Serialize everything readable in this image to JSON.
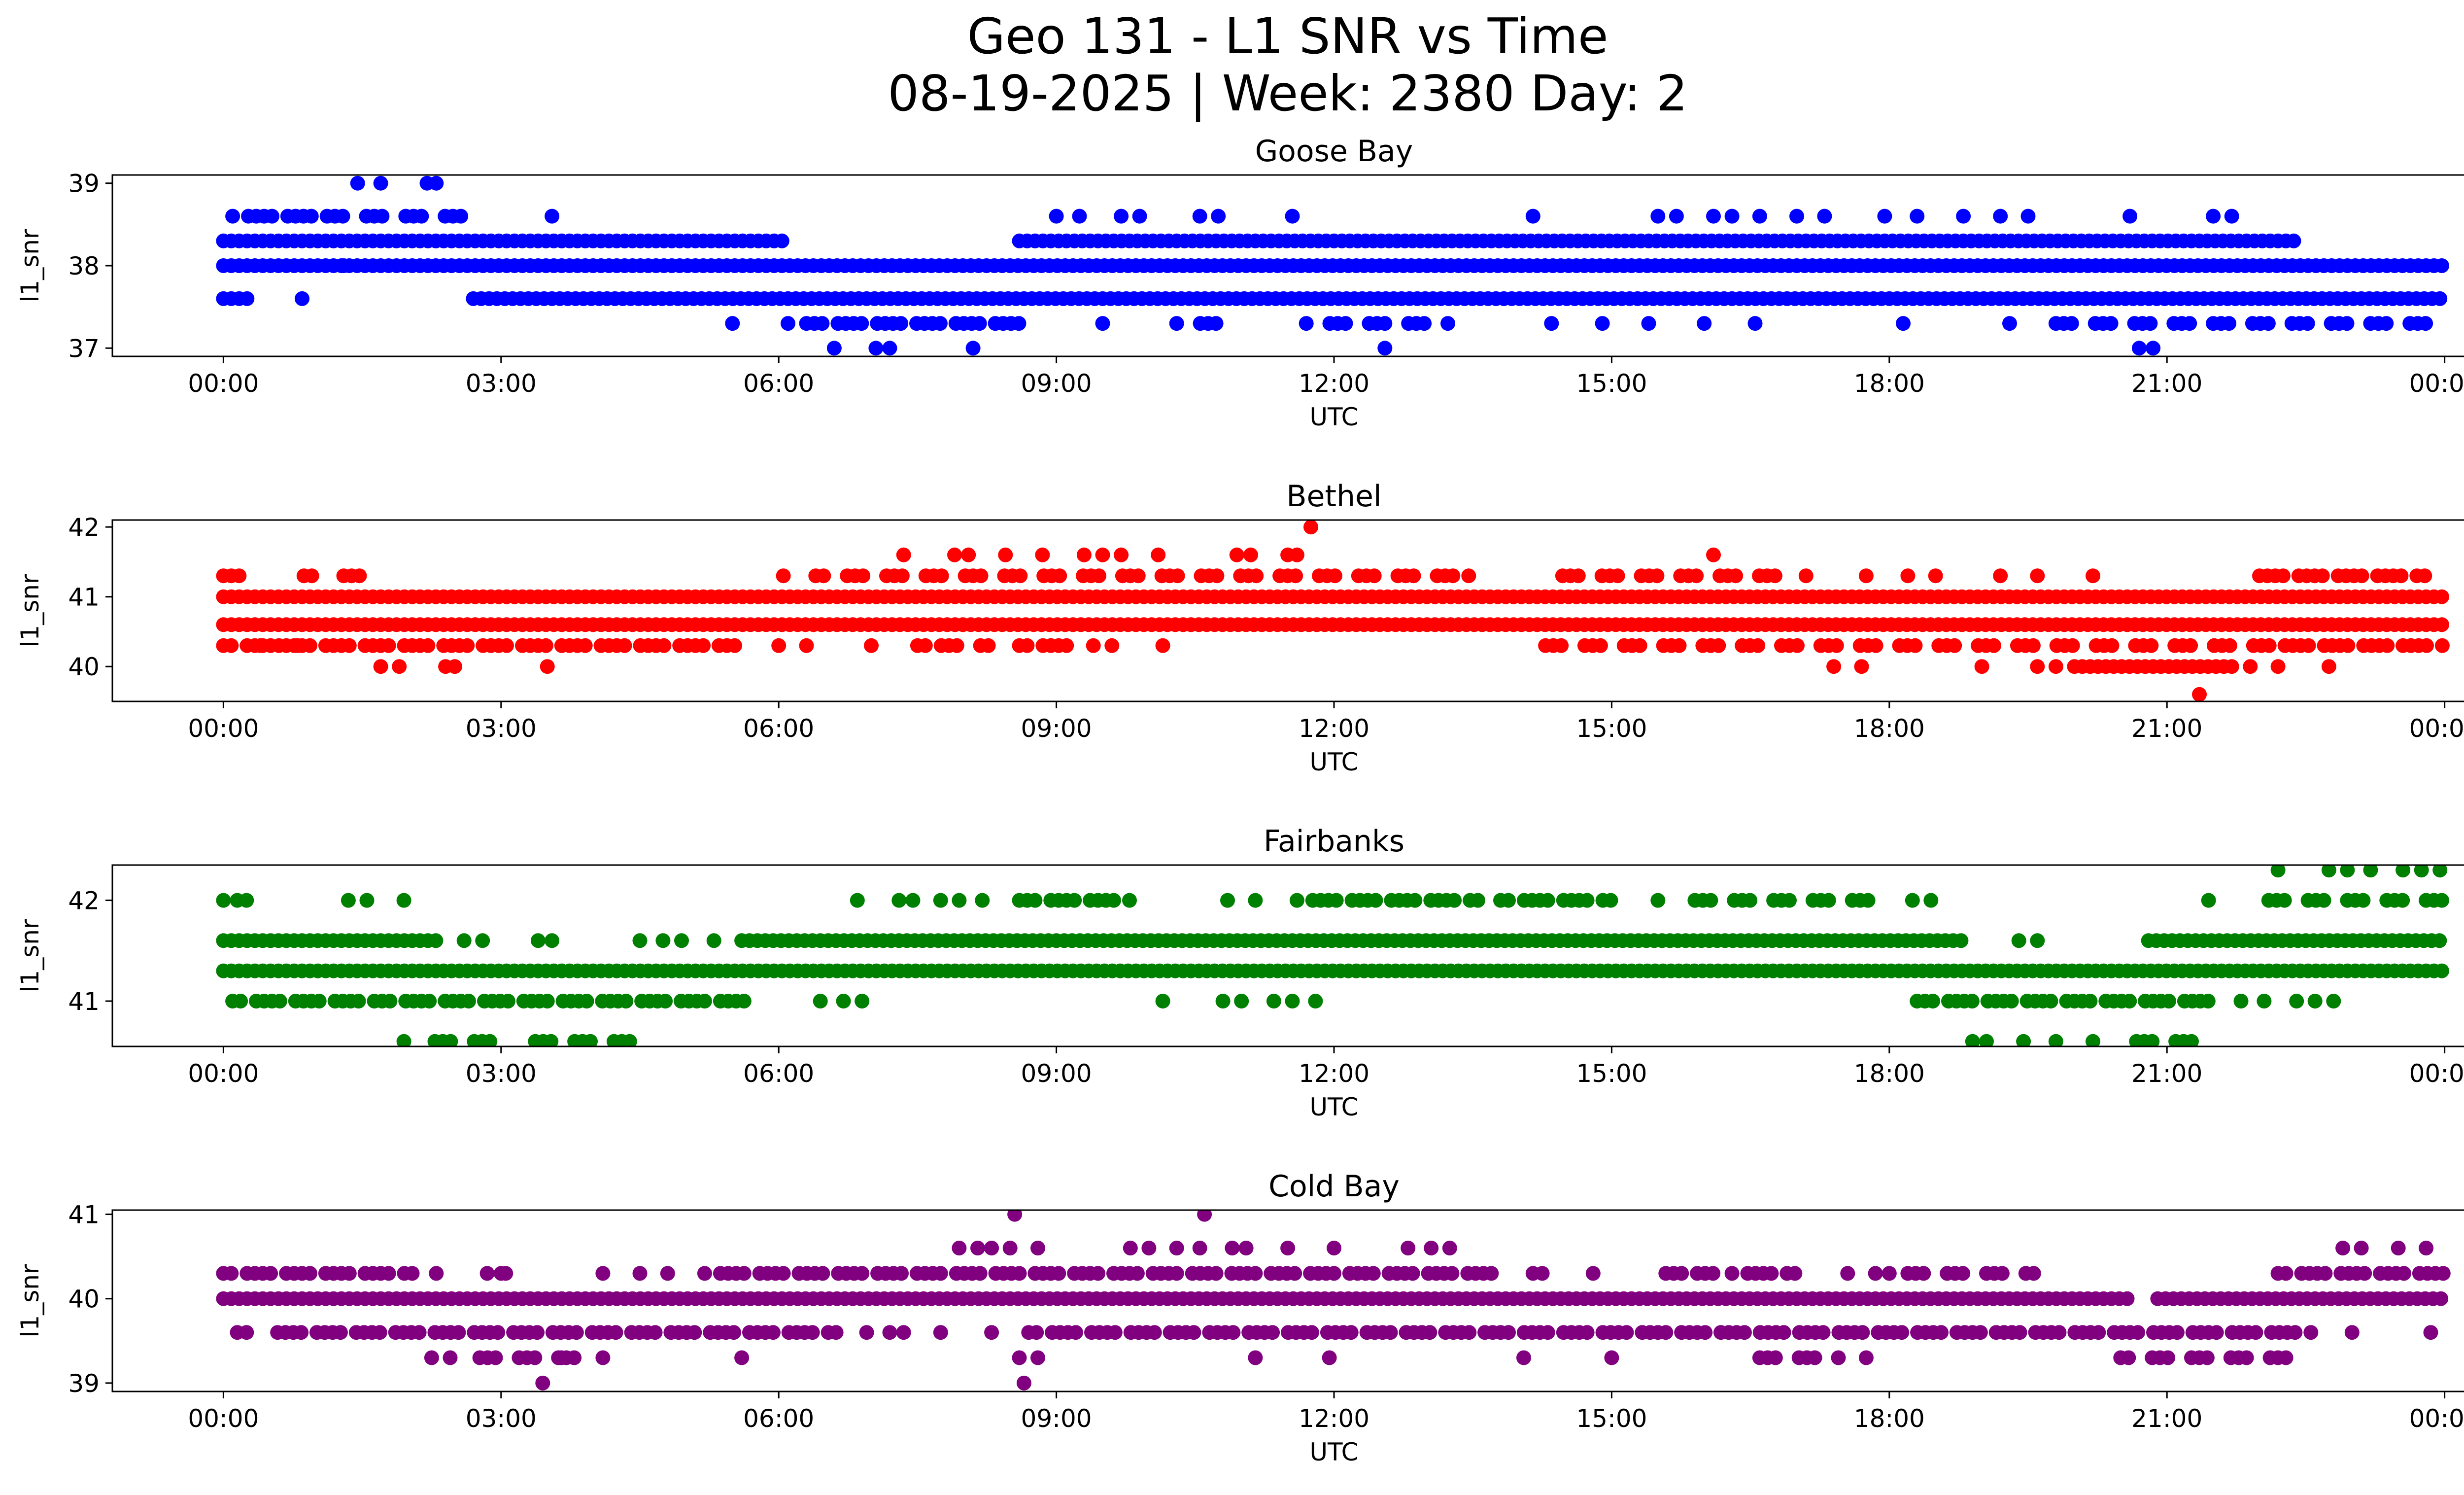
{
  "figure": {
    "title_line1": "Geo 131 - L1 SNR vs Time",
    "title_line2": "08-19-2025 | Week: 2380 Day: 2"
  },
  "chart_data": [
    {
      "type": "scatter",
      "title": "Goose Bay",
      "xlabel": "UTC",
      "ylabel": "l1_snr",
      "color": "#0000ff",
      "x_range": [
        "00:00",
        "24:00"
      ],
      "x_ticks": [
        "00:00",
        "03:00",
        "06:00",
        "09:00",
        "12:00",
        "15:00",
        "18:00",
        "21:00",
        "00:00"
      ],
      "y_ticks": [
        37,
        38,
        39
      ],
      "ylim": [
        36.9,
        39.1
      ],
      "grid": false,
      "bands": [
        {
          "y": 38.6,
          "ranges": [
            [
              0.1,
              2.8
            ]
          ],
          "density": 0.85
        },
        {
          "y": 38.3,
          "ranges": [
            [
              0.0,
              6.1
            ],
            [
              8.6,
              22.4
            ]
          ],
          "density": 0.95
        },
        {
          "y": 38.0,
          "ranges": [
            [
              0.0,
              24.0
            ]
          ],
          "density": 1.0
        },
        {
          "y": 37.6,
          "ranges": [
            [
              0.0,
              0.3
            ],
            [
              2.7,
              24.0
            ]
          ],
          "density": 0.95
        },
        {
          "y": 37.3,
          "ranges": [
            [
              6.3,
              8.6
            ],
            [
              10.3,
              10.9
            ],
            [
              11.7,
              13.3
            ],
            [
              19.8,
              24.0
            ]
          ],
          "density": 0.8
        }
      ],
      "points": [
        [
          1.45,
          39.0
        ],
        [
          1.7,
          39.0
        ],
        [
          2.2,
          39.0
        ],
        [
          2.3,
          39.0
        ],
        [
          0.85,
          37.6
        ],
        [
          1.3,
          38.0
        ],
        [
          3.55,
          38.6
        ],
        [
          6.6,
          37.0
        ],
        [
          7.05,
          37.0
        ],
        [
          7.2,
          37.0
        ],
        [
          8.1,
          37.0
        ],
        [
          12.55,
          37.0
        ],
        [
          20.7,
          37.0
        ],
        [
          20.85,
          37.0
        ],
        [
          9.0,
          38.6
        ],
        [
          9.25,
          38.6
        ],
        [
          9.7,
          38.6
        ],
        [
          9.9,
          38.6
        ],
        [
          10.55,
          38.6
        ],
        [
          10.75,
          38.6
        ],
        [
          11.55,
          38.6
        ],
        [
          14.15,
          38.6
        ],
        [
          15.5,
          38.6
        ],
        [
          15.7,
          38.6
        ],
        [
          16.1,
          38.6
        ],
        [
          16.3,
          38.6
        ],
        [
          16.6,
          38.6
        ],
        [
          17.0,
          38.6
        ],
        [
          17.3,
          38.6
        ],
        [
          17.95,
          38.6
        ],
        [
          18.3,
          38.6
        ],
        [
          18.8,
          38.6
        ],
        [
          19.2,
          38.6
        ],
        [
          19.5,
          38.6
        ],
        [
          20.6,
          38.6
        ],
        [
          21.5,
          38.6
        ],
        [
          21.7,
          38.6
        ],
        [
          5.5,
          37.3
        ],
        [
          6.1,
          37.3
        ],
        [
          9.5,
          37.3
        ],
        [
          14.35,
          37.3
        ],
        [
          14.9,
          37.3
        ],
        [
          15.4,
          37.3
        ],
        [
          16.0,
          37.3
        ],
        [
          16.55,
          37.3
        ],
        [
          18.15,
          37.3
        ],
        [
          19.3,
          37.3
        ]
      ]
    },
    {
      "type": "scatter",
      "title": "Bethel",
      "xlabel": "UTC",
      "ylabel": "l1_snr",
      "color": "#ff0000",
      "x_range": [
        "00:00",
        "24:00"
      ],
      "x_ticks": [
        "00:00",
        "03:00",
        "06:00",
        "09:00",
        "12:00",
        "15:00",
        "18:00",
        "21:00",
        "00:00"
      ],
      "y_ticks": [
        40,
        41,
        42
      ],
      "ylim": [
        39.5,
        42.1
      ],
      "grid": false,
      "bands": [
        {
          "y": 41.3,
          "ranges": [
            [
              0.0,
              0.2
            ],
            [
              0.7,
              1.0
            ],
            [
              1.3,
              1.6
            ],
            [
              6.4,
              13.5
            ],
            [
              14.3,
              16.9
            ],
            [
              22.0,
              23.8
            ]
          ],
          "density": 0.8
        },
        {
          "y": 41.0,
          "ranges": [
            [
              0.0,
              24.0
            ]
          ],
          "density": 1.0
        },
        {
          "y": 40.6,
          "ranges": [
            [
              0.0,
              24.0
            ]
          ],
          "density": 1.0
        },
        {
          "y": 40.3,
          "ranges": [
            [
              0.0,
              5.6
            ],
            [
              7.5,
              8.3
            ],
            [
              8.6,
              9.2
            ],
            [
              14.2,
              24.0
            ]
          ],
          "density": 0.85
        },
        {
          "y": 40.0,
          "ranges": [
            [
              20.0,
              21.7
            ]
          ],
          "density": 0.95
        }
      ],
      "points": [
        [
          1.7,
          40.0
        ],
        [
          1.9,
          40.0
        ],
        [
          2.4,
          40.0
        ],
        [
          2.5,
          40.0
        ],
        [
          3.5,
          40.0
        ],
        [
          17.4,
          40.0
        ],
        [
          17.7,
          40.0
        ],
        [
          19.0,
          40.0
        ],
        [
          19.6,
          40.0
        ],
        [
          19.8,
          40.0
        ],
        [
          21.9,
          40.0
        ],
        [
          22.2,
          40.0
        ],
        [
          22.75,
          40.0
        ],
        [
          0.4,
          40.3
        ],
        [
          0.6,
          40.3
        ],
        [
          0.8,
          40.3
        ],
        [
          6.0,
          40.3
        ],
        [
          6.3,
          40.3
        ],
        [
          7.0,
          40.3
        ],
        [
          9.4,
          40.3
        ],
        [
          9.6,
          40.3
        ],
        [
          10.15,
          40.3
        ],
        [
          6.05,
          41.3
        ],
        [
          17.1,
          41.3
        ],
        [
          17.75,
          41.3
        ],
        [
          18.2,
          41.3
        ],
        [
          18.5,
          41.3
        ],
        [
          19.2,
          41.3
        ],
        [
          19.6,
          41.3
        ],
        [
          20.2,
          41.3
        ],
        [
          7.35,
          41.6
        ],
        [
          7.9,
          41.6
        ],
        [
          8.05,
          41.6
        ],
        [
          8.45,
          41.6
        ],
        [
          8.85,
          41.6
        ],
        [
          9.3,
          41.6
        ],
        [
          9.5,
          41.6
        ],
        [
          9.7,
          41.6
        ],
        [
          10.1,
          41.6
        ],
        [
          10.95,
          41.6
        ],
        [
          11.1,
          41.6
        ],
        [
          11.5,
          41.6
        ],
        [
          11.6,
          41.6
        ],
        [
          16.1,
          41.6
        ],
        [
          11.75,
          42.0
        ],
        [
          21.35,
          39.6
        ]
      ]
    },
    {
      "type": "scatter",
      "title": "Fairbanks",
      "xlabel": "UTC",
      "ylabel": "l1_snr",
      "color": "#008000",
      "x_range": [
        "00:00",
        "24:00"
      ],
      "x_ticks": [
        "00:00",
        "03:00",
        "06:00",
        "09:00",
        "12:00",
        "15:00",
        "18:00",
        "21:00",
        "00:00"
      ],
      "y_ticks": [
        41,
        42
      ],
      "ylim": [
        40.55,
        42.35
      ],
      "grid": false,
      "bands": [
        {
          "y": 42.0,
          "ranges": [
            [
              8.6,
              9.8
            ],
            [
              11.6,
              13.6
            ],
            [
              13.8,
              15.0
            ],
            [
              15.9,
              18.0
            ],
            [
              22.1,
              24.0
            ]
          ],
          "density": 0.85
        },
        {
          "y": 41.6,
          "ranges": [
            [
              0.0,
              2.3
            ],
            [
              5.6,
              18.8
            ],
            [
              20.8,
              24.0
            ]
          ],
          "density": 0.95
        },
        {
          "y": 41.3,
          "ranges": [
            [
              0.0,
              24.0
            ]
          ],
          "density": 1.0
        },
        {
          "y": 41.0,
          "ranges": [
            [
              0.1,
              5.7
            ],
            [
              18.3,
              21.6
            ]
          ],
          "density": 0.9
        },
        {
          "y": 40.6,
          "ranges": [
            [
              2.2,
              3.1
            ],
            [
              3.2,
              4.5
            ],
            [
              20.5,
              21.5
            ]
          ],
          "density": 0.75
        }
      ],
      "points": [
        [
          0.0,
          42.0
        ],
        [
          0.15,
          42.0
        ],
        [
          0.25,
          42.0
        ],
        [
          1.35,
          42.0
        ],
        [
          1.55,
          42.0
        ],
        [
          1.95,
          42.0
        ],
        [
          6.85,
          42.0
        ],
        [
          7.3,
          42.0
        ],
        [
          7.45,
          42.0
        ],
        [
          7.75,
          42.0
        ],
        [
          7.95,
          42.0
        ],
        [
          8.2,
          42.0
        ],
        [
          10.85,
          42.0
        ],
        [
          11.15,
          42.0
        ],
        [
          15.5,
          42.0
        ],
        [
          18.25,
          42.0
        ],
        [
          18.45,
          42.0
        ],
        [
          21.45,
          42.0
        ],
        [
          22.2,
          42.3
        ],
        [
          22.75,
          42.3
        ],
        [
          22.95,
          42.3
        ],
        [
          23.2,
          42.3
        ],
        [
          23.55,
          42.3
        ],
        [
          23.75,
          42.3
        ],
        [
          23.95,
          42.3
        ],
        [
          2.6,
          41.6
        ],
        [
          2.8,
          41.6
        ],
        [
          3.4,
          41.6
        ],
        [
          3.55,
          41.6
        ],
        [
          4.5,
          41.6
        ],
        [
          4.75,
          41.6
        ],
        [
          4.95,
          41.6
        ],
        [
          5.3,
          41.6
        ],
        [
          19.4,
          41.6
        ],
        [
          19.6,
          41.6
        ],
        [
          6.45,
          41.0
        ],
        [
          6.7,
          41.0
        ],
        [
          6.9,
          41.0
        ],
        [
          10.15,
          41.0
        ],
        [
          10.8,
          41.0
        ],
        [
          11.0,
          41.0
        ],
        [
          11.35,
          41.0
        ],
        [
          11.55,
          41.0
        ],
        [
          11.8,
          41.0
        ],
        [
          21.8,
          41.0
        ],
        [
          22.05,
          41.0
        ],
        [
          22.4,
          41.0
        ],
        [
          22.6,
          41.0
        ],
        [
          22.8,
          41.0
        ],
        [
          1.95,
          40.6
        ],
        [
          18.9,
          40.6
        ],
        [
          19.05,
          40.6
        ],
        [
          19.45,
          40.6
        ],
        [
          19.8,
          40.6
        ],
        [
          20.2,
          40.6
        ]
      ]
    },
    {
      "type": "scatter",
      "title": "Cold Bay",
      "xlabel": "UTC",
      "ylabel": "l1_snr",
      "color": "#800080",
      "x_range": [
        "00:00",
        "24:00"
      ],
      "x_ticks": [
        "00:00",
        "03:00",
        "06:00",
        "09:00",
        "12:00",
        "15:00",
        "18:00",
        "21:00",
        "00:00"
      ],
      "y_ticks": [
        39,
        40,
        41
      ],
      "ylim": [
        38.9,
        41.05
      ],
      "grid": false,
      "bands": [
        {
          "y": 40.3,
          "ranges": [
            [
              0.0,
              2.1
            ],
            [
              5.2,
              13.7
            ],
            [
              15.5,
              16.1
            ],
            [
              16.3,
              17.0
            ],
            [
              18.2,
              19.6
            ],
            [
              22.2,
              24.0
            ]
          ],
          "density": 0.85
        },
        {
          "y": 40.0,
          "ranges": [
            [
              0.0,
              20.6
            ],
            [
              20.9,
              24.0
            ]
          ],
          "density": 1.0
        },
        {
          "y": 39.6,
          "ranges": [
            [
              0.5,
              6.7
            ],
            [
              8.7,
              22.6
            ]
          ],
          "density": 0.9
        },
        {
          "y": 39.3,
          "ranges": [
            [
              2.6,
              4.0
            ],
            [
              16.6,
              17.5
            ],
            [
              20.5,
              22.3
            ]
          ],
          "density": 0.8
        }
      ],
      "points": [
        [
          2.25,
          39.3
        ],
        [
          2.45,
          39.3
        ],
        [
          3.65,
          39.3
        ],
        [
          4.1,
          39.3
        ],
        [
          5.6,
          39.3
        ],
        [
          8.6,
          39.3
        ],
        [
          8.8,
          39.3
        ],
        [
          11.15,
          39.3
        ],
        [
          11.95,
          39.3
        ],
        [
          14.05,
          39.3
        ],
        [
          15.0,
          39.3
        ],
        [
          17.75,
          39.3
        ],
        [
          3.45,
          39.0
        ],
        [
          8.65,
          39.0
        ],
        [
          0.15,
          39.6
        ],
        [
          0.25,
          39.6
        ],
        [
          6.95,
          39.6
        ],
        [
          7.2,
          39.6
        ],
        [
          7.35,
          39.6
        ],
        [
          7.75,
          39.6
        ],
        [
          8.3,
          39.6
        ],
        [
          23.0,
          39.6
        ],
        [
          23.85,
          39.6
        ],
        [
          2.3,
          40.3
        ],
        [
          2.85,
          40.3
        ],
        [
          3.0,
          40.3
        ],
        [
          3.05,
          40.3
        ],
        [
          4.1,
          40.3
        ],
        [
          4.5,
          40.3
        ],
        [
          4.8,
          40.3
        ],
        [
          14.15,
          40.3
        ],
        [
          14.25,
          40.3
        ],
        [
          14.8,
          40.3
        ],
        [
          17.55,
          40.3
        ],
        [
          17.85,
          40.3
        ],
        [
          18.0,
          40.3
        ],
        [
          7.95,
          40.6
        ],
        [
          8.15,
          40.6
        ],
        [
          8.3,
          40.6
        ],
        [
          8.5,
          40.6
        ],
        [
          8.8,
          40.6
        ],
        [
          9.8,
          40.6
        ],
        [
          10.0,
          40.6
        ],
        [
          10.3,
          40.6
        ],
        [
          10.55,
          40.6
        ],
        [
          10.9,
          40.6
        ],
        [
          11.05,
          40.6
        ],
        [
          11.5,
          40.6
        ],
        [
          12.0,
          40.6
        ],
        [
          12.8,
          40.6
        ],
        [
          13.05,
          40.6
        ],
        [
          13.25,
          40.6
        ],
        [
          22.9,
          40.6
        ],
        [
          23.1,
          40.6
        ],
        [
          23.5,
          40.6
        ],
        [
          23.8,
          40.6
        ],
        [
          8.55,
          41.0
        ],
        [
          10.6,
          41.0
        ]
      ]
    }
  ]
}
